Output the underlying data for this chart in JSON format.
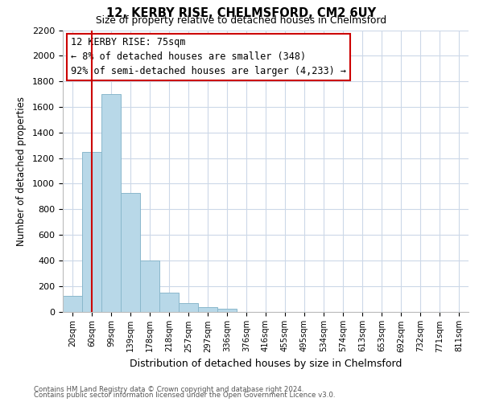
{
  "title1": "12, KERBY RISE, CHELMSFORD, CM2 6UY",
  "title2": "Size of property relative to detached houses in Chelmsford",
  "xlabel": "Distribution of detached houses by size in Chelmsford",
  "ylabel": "Number of detached properties",
  "bar_labels": [
    "20sqm",
    "60sqm",
    "99sqm",
    "139sqm",
    "178sqm",
    "218sqm",
    "257sqm",
    "297sqm",
    "336sqm",
    "376sqm",
    "416sqm",
    "455sqm",
    "495sqm",
    "534sqm",
    "574sqm",
    "613sqm",
    "653sqm",
    "692sqm",
    "732sqm",
    "771sqm",
    "811sqm"
  ],
  "bar_values": [
    120,
    1245,
    1700,
    925,
    400,
    150,
    65,
    35,
    20,
    0,
    0,
    0,
    0,
    0,
    0,
    0,
    0,
    0,
    0,
    0,
    0
  ],
  "bar_color": "#b8d8e8",
  "bar_edge_color": "#8ab8cc",
  "vline_x": 1,
  "vline_color": "#cc0000",
  "ylim": [
    0,
    2200
  ],
  "yticks": [
    0,
    200,
    400,
    600,
    800,
    1000,
    1200,
    1400,
    1600,
    1800,
    2000,
    2200
  ],
  "annotation_title": "12 KERBY RISE: 75sqm",
  "annotation_line1": "← 8% of detached houses are smaller (348)",
  "annotation_line2": "92% of semi-detached houses are larger (4,233) →",
  "annotation_box_color": "#ffffff",
  "annotation_box_edge": "#cc0000",
  "footer1": "Contains HM Land Registry data © Crown copyright and database right 2024.",
  "footer2": "Contains public sector information licensed under the Open Government Licence v3.0.",
  "background_color": "#ffffff",
  "grid_color": "#ccd8e8"
}
